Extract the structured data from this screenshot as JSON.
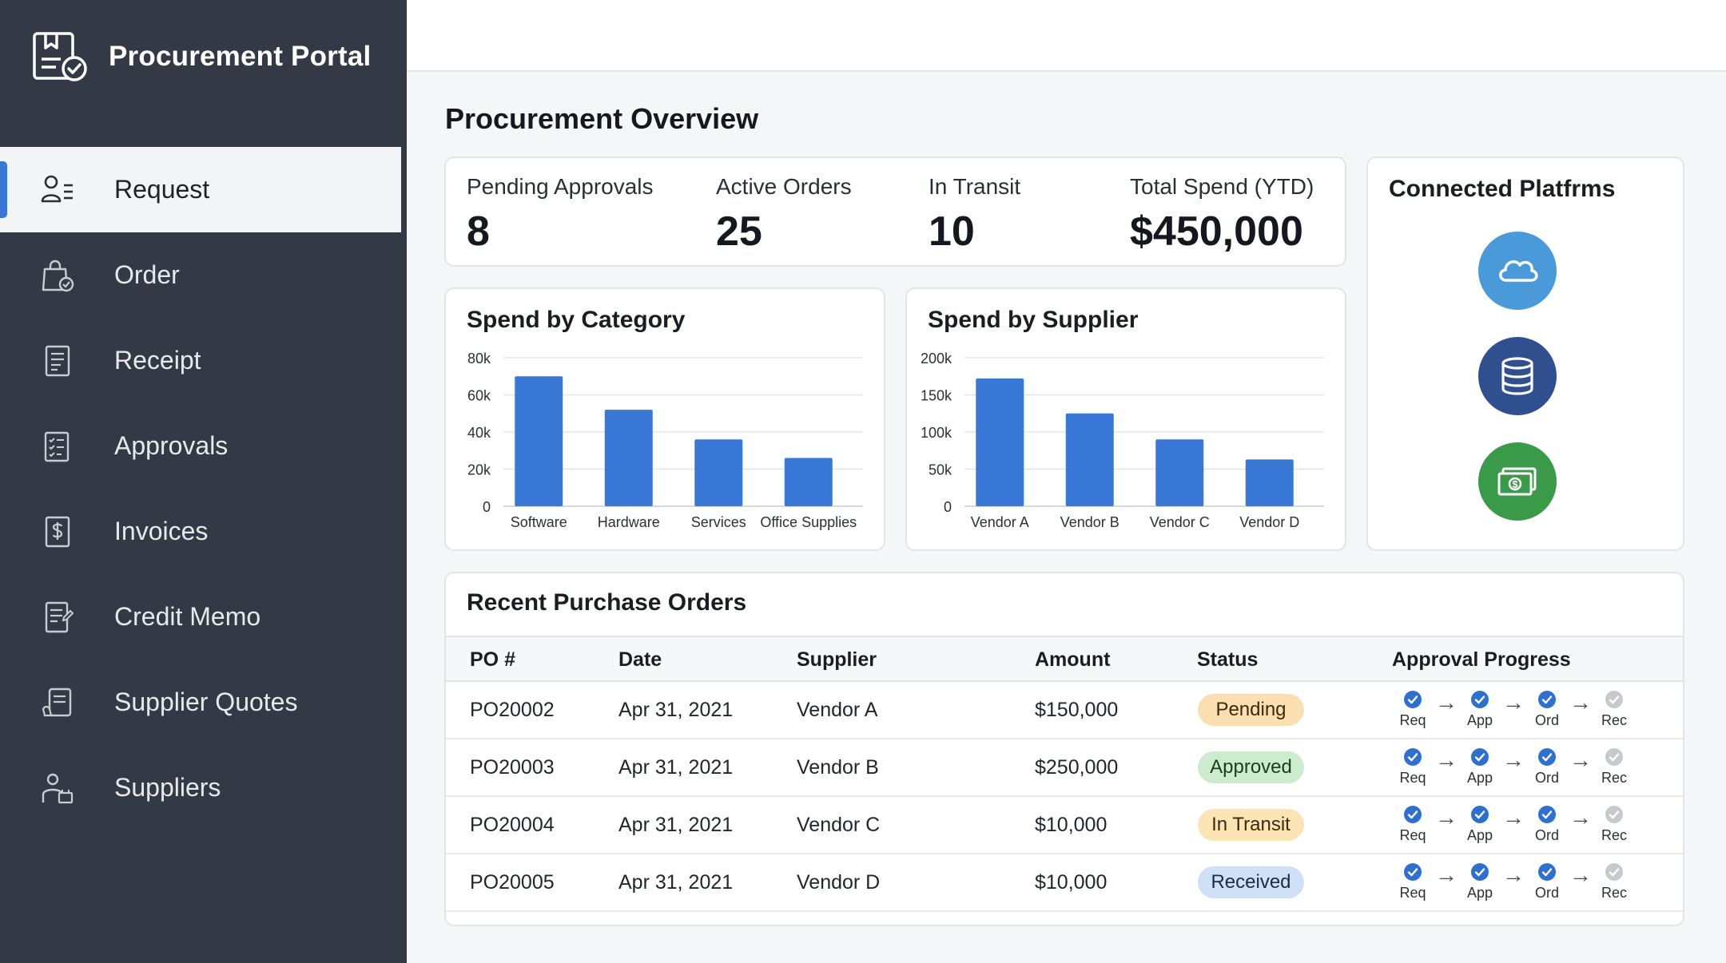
{
  "app": {
    "title": "Procurement Portal"
  },
  "sidebar": {
    "items": [
      {
        "label": "Request",
        "icon": "request-user-list-icon",
        "active": true
      },
      {
        "label": "Order",
        "icon": "shopping-bag-check-icon",
        "active": false
      },
      {
        "label": "Receipt",
        "icon": "receipt-icon",
        "active": false
      },
      {
        "label": "Approvals",
        "icon": "checklist-icon",
        "active": false
      },
      {
        "label": "Invoices",
        "icon": "dollar-document-icon",
        "active": false
      },
      {
        "label": "Credit Memo",
        "icon": "memo-icon",
        "active": false
      },
      {
        "label": "Supplier Quotes",
        "icon": "quote-document-icon",
        "active": false
      },
      {
        "label": "Suppliers",
        "icon": "supplier-person-icon",
        "active": false
      }
    ]
  },
  "page": {
    "title": "Procurement Overview"
  },
  "kpis": [
    {
      "label": "Pending Approvals",
      "value": "8"
    },
    {
      "label": "Active Orders",
      "value": "25"
    },
    {
      "label": "In Transit",
      "value": "10"
    },
    {
      "label": "Total Spend (YTD)",
      "value": "$450,000"
    }
  ],
  "chart_data": [
    {
      "type": "bar",
      "title": "Spend by Category",
      "categories": [
        "Software",
        "Hardware",
        "Services",
        "Office Supplies"
      ],
      "values": [
        70000,
        52000,
        36000,
        26000
      ],
      "ylim": [
        0,
        80000
      ],
      "yticks": [
        "0",
        "20k",
        "40k",
        "60k",
        "80k"
      ],
      "grid": true,
      "color": "#3a78d6"
    },
    {
      "type": "bar",
      "title": "Spend by Supplier",
      "categories": [
        "Vendor A",
        "Vendor B",
        "Vendor C",
        "Vendor D"
      ],
      "values": [
        172000,
        125000,
        90000,
        63000
      ],
      "ylim": [
        0,
        200000
      ],
      "yticks": [
        "0",
        "50k",
        "100k",
        "150k",
        "200k"
      ],
      "grid": true,
      "color": "#3a78d6"
    }
  ],
  "platforms": {
    "title": "Connected Platfrms",
    "items": [
      {
        "icon": "cloud-icon",
        "color": "#4a9ad9"
      },
      {
        "icon": "database-icon",
        "color": "#2f4f8f"
      },
      {
        "icon": "cash-icon",
        "color": "#3a9a4a"
      }
    ]
  },
  "orders": {
    "title": "Recent Purchase Orders",
    "columns": [
      "PO #",
      "Date",
      "Supplier",
      "Amount",
      "Status",
      "Approval Progress"
    ],
    "steps": [
      "Req",
      "App",
      "Ord",
      "Rec"
    ],
    "rows": [
      {
        "po": "PO20002",
        "date": "Apr 31, 2021",
        "supplier": "Vendor A",
        "amount": "$150,000",
        "status": "Pending",
        "status_bg": "#fbdfb0",
        "status_fg": "#3a2a10",
        "steps_done": 3
      },
      {
        "po": "PO20003",
        "date": "Apr 31, 2021",
        "supplier": "Vendor B",
        "amount": "$250,000",
        "status": "Approved",
        "status_bg": "#cdeccf",
        "status_fg": "#1e3b22",
        "steps_done": 3
      },
      {
        "po": "PO20004",
        "date": "Apr 31, 2021",
        "supplier": "Vendor C",
        "amount": "$10,000",
        "status": "In Transit",
        "status_bg": "#fde4b5",
        "status_fg": "#3a2a10",
        "steps_done": 3
      },
      {
        "po": "PO20005",
        "date": "Apr 31, 2021",
        "supplier": "Vendor D",
        "amount": "$10,000",
        "status": "Received",
        "status_bg": "#cfe0f7",
        "status_fg": "#1b2c4a",
        "steps_done": 3
      }
    ]
  }
}
